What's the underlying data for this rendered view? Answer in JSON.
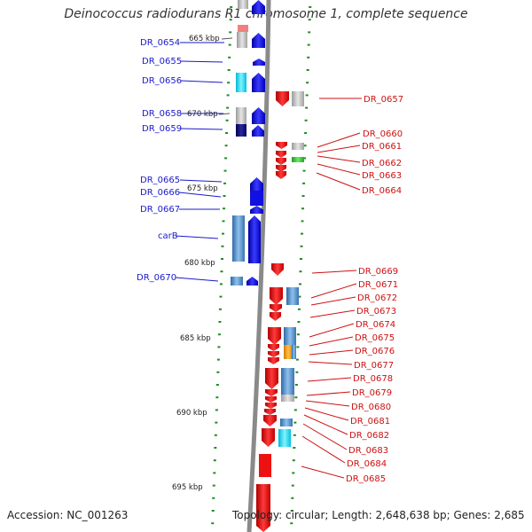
{
  "title": "Deinococcus radiodurans R1 chromosome 1, complete sequence",
  "accession": "Accession: NC_001263",
  "topology": "Topology: circular; Length: 2,648,638 bp; Genes: 2,685",
  "colors": {
    "forward": "#1010e0",
    "reverse": "#ee1111",
    "backbone": "#8a8a8a",
    "tick": "#228b22",
    "left_label": "#1a1acc",
    "right_label": "#cc1111"
  },
  "ruler": [
    {
      "label": "665 kbp"
    },
    {
      "label": "670 kbp"
    },
    {
      "label": "675 kbp"
    },
    {
      "label": "680 kbp"
    },
    {
      "label": "685 kbp"
    },
    {
      "label": "690 kbp"
    },
    {
      "label": "695 kbp"
    }
  ],
  "left_genes": [
    {
      "label": "DR_0654"
    },
    {
      "label": "DR_0655"
    },
    {
      "label": "DR_0656"
    },
    {
      "label": "DR_0658"
    },
    {
      "label": "DR_0659"
    },
    {
      "label": "DR_0665"
    },
    {
      "label": "DR_0666"
    },
    {
      "label": "DR_0667"
    },
    {
      "label": "carB"
    },
    {
      "label": "DR_0670"
    }
  ],
  "right_genes": [
    {
      "label": "DR_0657"
    },
    {
      "label": "DR_0660"
    },
    {
      "label": "DR_0661"
    },
    {
      "label": "DR_0662"
    },
    {
      "label": "DR_0663"
    },
    {
      "label": "DR_0664"
    },
    {
      "label": "DR_0669"
    },
    {
      "label": "DR_0671"
    },
    {
      "label": "DR_0672"
    },
    {
      "label": "DR_0673"
    },
    {
      "label": "DR_0674"
    },
    {
      "label": "DR_0675"
    },
    {
      "label": "DR_0676"
    },
    {
      "label": "DR_0677"
    },
    {
      "label": "DR_0678"
    },
    {
      "label": "DR_0679"
    },
    {
      "label": "DR_0680"
    },
    {
      "label": "DR_0681"
    },
    {
      "label": "DR_0682"
    },
    {
      "label": "DR_0683"
    },
    {
      "label": "DR_0684"
    },
    {
      "label": "DR_0685"
    }
  ]
}
